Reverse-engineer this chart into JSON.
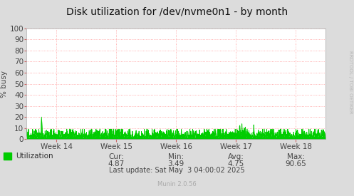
{
  "title": "Disk utilization for /dev/nvme0n1 - by month",
  "ylabel": "% busy",
  "background_color": "#DCDCDC",
  "plot_bg_color": "#FFFFFF",
  "grid_color": "#FF9999",
  "line_color": "#00CC00",
  "fill_color": "#00CC00",
  "ylim": [
    0,
    100
  ],
  "yticks": [
    0,
    10,
    20,
    30,
    40,
    50,
    60,
    70,
    80,
    90,
    100
  ],
  "week_labels": [
    "Week 14",
    "Week 15",
    "Week 16",
    "Week 17",
    "Week 18"
  ],
  "legend_label": "Utilization",
  "cur_label": "Cur:",
  "cur_val": "4.87",
  "min_label": "Min:",
  "min_val": "3.49",
  "avg_label": "Avg:",
  "avg_val": "4.75",
  "max_label": "Max:",
  "max_val": "90.65",
  "last_update": "Last update: Sat May  3 04:00:02 2025",
  "munin_version": "Munin 2.0.56",
  "rrdtool_label": "RRDTOOL / TOBI OETIKER",
  "title_fontsize": 10,
  "axis_fontsize": 7.5,
  "legend_fontsize": 7.5,
  "stats_fontsize": 7.5
}
